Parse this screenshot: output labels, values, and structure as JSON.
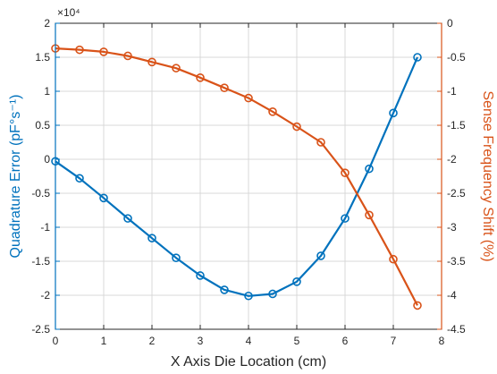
{
  "chart_data": {
    "type": "line",
    "xlabel": "X Axis Die Location (cm)",
    "xlim": [
      0,
      8
    ],
    "xticks": [
      0,
      1,
      2,
      3,
      4,
      5,
      6,
      7,
      8
    ],
    "grid": true,
    "left_axis": {
      "label": "Quadrature Error (pF°s⁻¹)",
      "color": "#0072BD",
      "ylim": [
        -2.5,
        2
      ],
      "ticks": [
        -2.5,
        -2,
        -1.5,
        -1,
        -0.5,
        0,
        0.5,
        1,
        1.5,
        2
      ],
      "tick_labels": [
        "-2.5",
        "-2",
        "-1.5",
        "-1",
        "-0.5",
        "0",
        "0.5",
        "1",
        "1.5",
        "2"
      ],
      "multiplier": "×10⁴"
    },
    "right_axis": {
      "label": "Sense Frequency Shift (%)",
      "color": "#D95319",
      "ylim": [
        -4.5,
        0
      ],
      "ticks": [
        -4.5,
        -4,
        -3.5,
        -3,
        -2.5,
        -2,
        -1.5,
        -1,
        -0.5,
        0
      ],
      "tick_labels": [
        "-4.5",
        "-4",
        "-3.5",
        "-3",
        "-2.5",
        "-2",
        "-1.5",
        "-1",
        "-0.5",
        "0"
      ]
    },
    "series": [
      {
        "axis": "left",
        "color": "#0072BD",
        "x": [
          0,
          0.5,
          1,
          1.5,
          2,
          2.5,
          3,
          3.5,
          4,
          4.5,
          5,
          5.5,
          6,
          6.5,
          7,
          7.5
        ],
        "y": [
          -0.03,
          -0.28,
          -0.57,
          -0.87,
          -1.16,
          -1.45,
          -1.71,
          -1.92,
          -2.01,
          -1.98,
          -1.8,
          -1.42,
          -0.87,
          -0.14,
          0.68,
          1.5
        ]
      },
      {
        "axis": "right",
        "color": "#D95319",
        "x": [
          0,
          0.5,
          1,
          1.5,
          2,
          2.5,
          3,
          3.5,
          4,
          4.5,
          5,
          5.5,
          6,
          6.5,
          7,
          7.5
        ],
        "y": [
          -0.37,
          -0.39,
          -0.42,
          -0.48,
          -0.57,
          -0.66,
          -0.8,
          -0.95,
          -1.1,
          -1.3,
          -1.52,
          -1.75,
          -2.2,
          -2.82,
          -3.47,
          -4.15
        ]
      }
    ]
  }
}
